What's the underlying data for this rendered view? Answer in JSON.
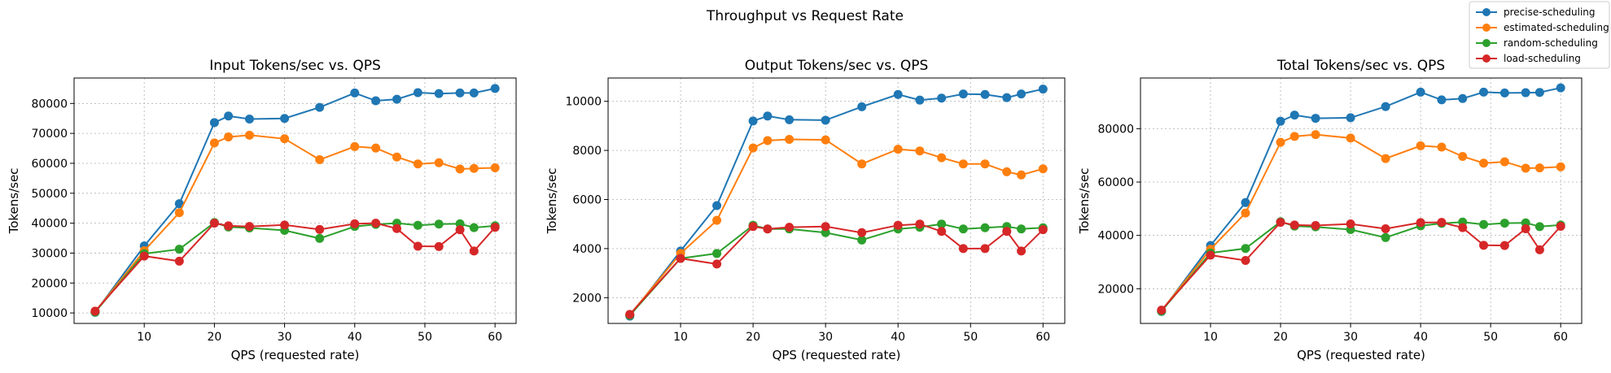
{
  "figure": {
    "suptitle": "Throughput vs Request Rate"
  },
  "legend": {
    "placement": "upper-right",
    "entries": [
      {
        "label": "precise-scheduling",
        "color": "#1f77b4"
      },
      {
        "label": "estimated-scheduling",
        "color": "#ff7f0e"
      },
      {
        "label": "random-scheduling",
        "color": "#2ca02c"
      },
      {
        "label": "load-scheduling",
        "color": "#d62728"
      }
    ]
  },
  "chart_data": [
    {
      "type": "line",
      "title": "Input Tokens/sec vs. QPS",
      "xlabel": "QPS (requested rate)",
      "ylabel": "Tokens/sec",
      "grid": true,
      "xlim": [
        0,
        63
      ],
      "ylim": [
        6500,
        88500
      ],
      "xticks": [
        10,
        20,
        30,
        40,
        50,
        60
      ],
      "yticks": [
        10000,
        20000,
        30000,
        40000,
        50000,
        60000,
        70000,
        80000
      ],
      "x": [
        3,
        10,
        15,
        20,
        22,
        25,
        30,
        35,
        40,
        43,
        46,
        49,
        52,
        55,
        57,
        60
      ],
      "series": [
        {
          "name": "precise-scheduling",
          "color": "#1f77b4",
          "values": [
            10200,
            32400,
            46500,
            73600,
            75800,
            74800,
            75000,
            78700,
            83500,
            80900,
            81400,
            83600,
            83300,
            83500,
            83500,
            85000
          ]
        },
        {
          "name": "estimated-scheduling",
          "color": "#ff7f0e",
          "values": [
            10400,
            30800,
            43500,
            66800,
            68800,
            69400,
            68200,
            61200,
            65600,
            65100,
            62100,
            59800,
            60200,
            58100,
            58300,
            58500
          ]
        },
        {
          "name": "random-scheduling",
          "color": "#2ca02c",
          "values": [
            10300,
            29800,
            31300,
            40200,
            38700,
            38400,
            37600,
            34900,
            38900,
            39600,
            40000,
            39300,
            39700,
            39800,
            38500,
            39100
          ]
        },
        {
          "name": "load-scheduling",
          "color": "#d62728",
          "values": [
            10600,
            29000,
            27300,
            40000,
            39100,
            38900,
            39400,
            37900,
            39800,
            40000,
            38200,
            32300,
            32200,
            37800,
            30700,
            38600
          ]
        }
      ]
    },
    {
      "type": "line",
      "title": "Output Tokens/sec vs. QPS",
      "xlabel": "QPS (requested rate)",
      "ylabel": "Tokens/sec",
      "grid": true,
      "xlim": [
        0,
        63
      ],
      "ylim": [
        950,
        10950
      ],
      "xticks": [
        10,
        20,
        30,
        40,
        50,
        60
      ],
      "yticks": [
        2000,
        4000,
        6000,
        8000,
        10000
      ],
      "x": [
        3,
        10,
        15,
        20,
        22,
        25,
        30,
        35,
        40,
        43,
        46,
        49,
        52,
        55,
        57,
        60
      ],
      "series": [
        {
          "name": "precise-scheduling",
          "color": "#1f77b4",
          "values": [
            1250,
            3900,
            5750,
            9200,
            9400,
            9250,
            9230,
            9780,
            10280,
            10050,
            10130,
            10300,
            10280,
            10150,
            10300,
            10500
          ]
        },
        {
          "name": "estimated-scheduling",
          "color": "#ff7f0e",
          "values": [
            1300,
            3800,
            5150,
            8100,
            8400,
            8450,
            8430,
            7450,
            8050,
            7980,
            7700,
            7450,
            7450,
            7130,
            7000,
            7250
          ]
        },
        {
          "name": "random-scheduling",
          "color": "#2ca02c",
          "values": [
            1280,
            3600,
            3800,
            4950,
            4800,
            4800,
            4650,
            4350,
            4800,
            4870,
            5000,
            4800,
            4850,
            4900,
            4800,
            4850
          ]
        },
        {
          "name": "load-scheduling",
          "color": "#d62728",
          "values": [
            1320,
            3600,
            3370,
            4900,
            4800,
            4870,
            4900,
            4650,
            4950,
            5000,
            4700,
            4000,
            4000,
            4700,
            3900,
            4770
          ]
        }
      ]
    },
    {
      "type": "line",
      "title": "Total Tokens/sec vs. QPS",
      "xlabel": "QPS (requested rate)",
      "ylabel": "Tokens/sec",
      "grid": true,
      "xlim": [
        0,
        63
      ],
      "ylim": [
        7000,
        99000
      ],
      "xticks": [
        10,
        20,
        30,
        40,
        50,
        60
      ],
      "yticks": [
        20000,
        40000,
        60000,
        80000
      ],
      "x": [
        3,
        10,
        15,
        20,
        22,
        25,
        30,
        35,
        40,
        43,
        46,
        49,
        52,
        55,
        57,
        60
      ],
      "series": [
        {
          "name": "precise-scheduling",
          "color": "#1f77b4",
          "values": [
            11500,
            36200,
            52300,
            82800,
            85100,
            83900,
            84100,
            88300,
            93700,
            90800,
            91300,
            93700,
            93400,
            93500,
            93600,
            95300
          ]
        },
        {
          "name": "estimated-scheduling",
          "color": "#ff7f0e",
          "values": [
            11800,
            34800,
            48400,
            74900,
            77100,
            77800,
            76500,
            68800,
            73600,
            73100,
            69600,
            67100,
            67600,
            65200,
            65300,
            65700
          ]
        },
        {
          "name": "random-scheduling",
          "color": "#2ca02c",
          "values": [
            11600,
            33400,
            35100,
            45100,
            43500,
            43200,
            42200,
            39200,
            43600,
            44500,
            45000,
            44100,
            44600,
            44700,
            43300,
            43900
          ]
        },
        {
          "name": "load-scheduling",
          "color": "#d62728",
          "values": [
            12000,
            32600,
            30600,
            44900,
            43900,
            43700,
            44300,
            42500,
            44800,
            44900,
            42900,
            36300,
            36200,
            42500,
            34600,
            43400
          ]
        }
      ]
    }
  ]
}
